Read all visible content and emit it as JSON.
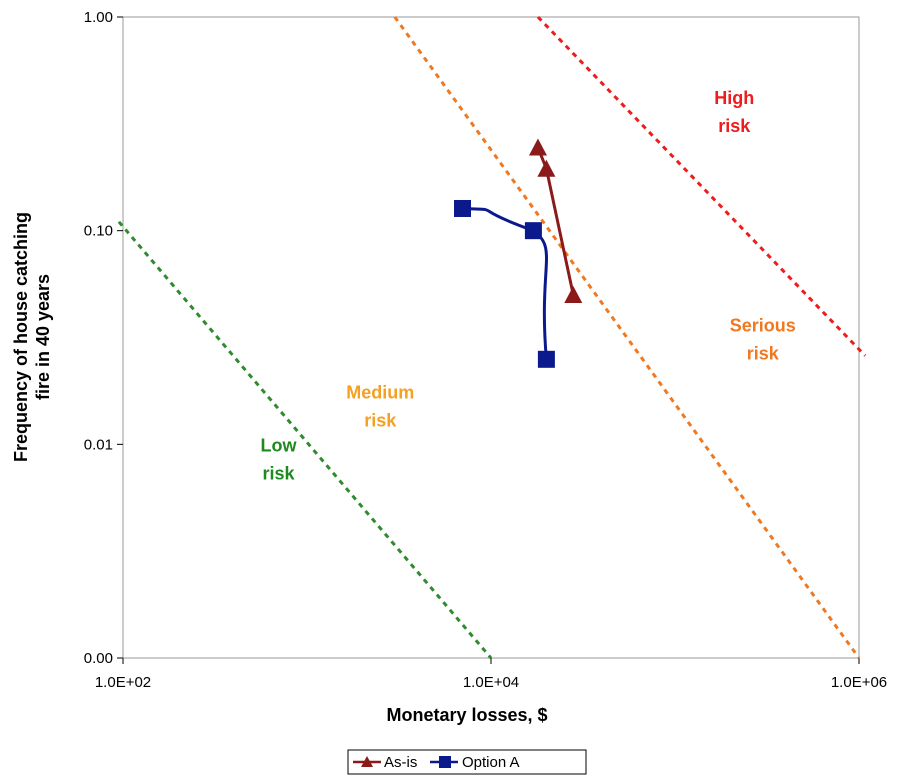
{
  "chart_data": {
    "type": "scatter",
    "xscale": "log",
    "yscale": "log",
    "xlabel": "Monetary losses, $",
    "ylabel": [
      "Frequency of house catching",
      "fire in 40 years"
    ],
    "xlim": [
      100,
      1000000
    ],
    "ylim": [
      0.001,
      1
    ],
    "x_ticks": [
      {
        "value": 100,
        "label": "1.0E+02"
      },
      {
        "value": 10000,
        "label": "1.0E+04"
      },
      {
        "value": 1000000,
        "label": "1.0E+06"
      }
    ],
    "y_ticks": [
      {
        "value": 1,
        "label": "1.00"
      },
      {
        "value": 0.1,
        "label": "0.10"
      },
      {
        "value": 0.01,
        "label": "0.01"
      },
      {
        "value": 0.001,
        "label": "0.00"
      }
    ],
    "grid": false,
    "legend_position": "bottom",
    "series": [
      {
        "name": "As-is",
        "color": "#8b1a1a",
        "marker": "triangle",
        "points": [
          {
            "x": 18000,
            "y": 0.245
          },
          {
            "x": 20000,
            "y": 0.195
          },
          {
            "x": 28000,
            "y": 0.05
          }
        ]
      },
      {
        "name": "Option A",
        "color": "#0a1a8c",
        "marker": "square",
        "points": [
          {
            "x": 7000,
            "y": 0.127
          },
          {
            "x": 17000,
            "y": 0.1
          },
          {
            "x": 20000,
            "y": 0.025
          }
        ]
      }
    ],
    "risk_boundaries": [
      {
        "color": "#2e8b2e",
        "from": {
          "x": 95,
          "y": 0.11
        },
        "to": {
          "x": 10000,
          "y": 0.001
        }
      },
      {
        "color": "#f07820",
        "from": {
          "x": 3000,
          "y": 1.0
        },
        "to": {
          "x": 1000000,
          "y": 0.001
        }
      },
      {
        "color": "#ee1c1c",
        "from": {
          "x": 18000,
          "y": 1.0
        },
        "to": {
          "x": 1080000,
          "y": 0.026
        }
      }
    ],
    "zones": [
      {
        "lines": [
          "Low",
          "risk"
        ],
        "color": "#1e8a1e",
        "x": 700,
        "y": 0.0085
      },
      {
        "lines": [
          "Medium",
          "risk"
        ],
        "color": "#f5a020",
        "x": 2500,
        "y": 0.015
      },
      {
        "lines": [
          "Serious",
          "risk"
        ],
        "color": "#f07820",
        "x": 300000,
        "y": 0.031
      },
      {
        "lines": [
          "High",
          "risk"
        ],
        "color": "#ee1c1c",
        "x": 210000,
        "y": 0.36
      }
    ]
  }
}
